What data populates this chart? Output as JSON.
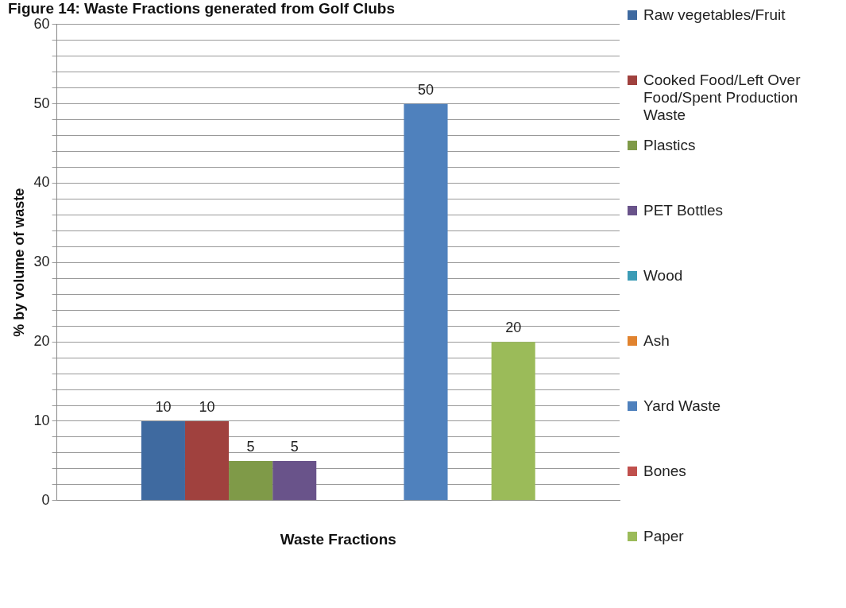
{
  "chart_data": {
    "type": "bar",
    "title": "Figure 14: Waste Fractions generated from Golf Clubs",
    "xlabel": "Waste Fractions",
    "ylabel": "% by volume of waste",
    "categories": [
      null
    ],
    "series": [
      {
        "name": "Raw vegetables/Fruit",
        "color": "#3f6aa0",
        "values": [
          10
        ]
      },
      {
        "name": "Cooked Food/Left Over Food/Spent Production Waste",
        "color": "#a0413e",
        "values": [
          10
        ]
      },
      {
        "name": "Plastics",
        "color": "#7f9a48",
        "values": [
          5
        ]
      },
      {
        "name": "PET Bottles",
        "color": "#69538a",
        "values": [
          5
        ]
      },
      {
        "name": "Wood",
        "color": "#3c9cb6",
        "values": [
          null
        ]
      },
      {
        "name": "Ash",
        "color": "#e1832f",
        "values": [
          null
        ]
      },
      {
        "name": "Yard Waste",
        "color": "#4f81bd",
        "values": [
          50
        ]
      },
      {
        "name": "Bones",
        "color": "#c0504d",
        "values": [
          null
        ]
      },
      {
        "name": "Paper",
        "color": "#9bbb59",
        "values": [
          20
        ]
      }
    ],
    "ylim": [
      0,
      60
    ],
    "yticks": [
      0,
      {
        "value": 2,
        "label": null
      },
      {
        "value": 4,
        "label": null
      },
      {
        "value": 6,
        "label": null
      },
      {
        "value": 8,
        "label": null
      },
      10,
      {
        "value": 12,
        "label": null
      },
      {
        "value": 14,
        "label": null
      },
      {
        "value": 16,
        "label": null
      },
      {
        "value": 18,
        "label": null
      },
      20,
      {
        "value": 22,
        "label": null
      },
      {
        "value": 24,
        "label": null
      },
      {
        "value": 26,
        "label": null
      },
      {
        "value": 28,
        "label": null
      },
      30,
      {
        "value": 32,
        "label": null
      },
      {
        "value": 34,
        "label": null
      },
      {
        "value": 36,
        "label": null
      },
      {
        "value": 38,
        "label": null
      },
      40,
      {
        "value": 42,
        "label": null
      },
      {
        "value": 44,
        "label": null
      },
      {
        "value": 46,
        "label": null
      },
      {
        "value": 48,
        "label": null
      },
      50,
      {
        "value": 52,
        "label": null
      },
      {
        "value": 54,
        "label": null
      },
      {
        "value": 56,
        "label": null
      },
      {
        "value": 58,
        "label": null
      },
      60
    ],
    "grid": "y",
    "legend": "right",
    "data_labels": true
  }
}
